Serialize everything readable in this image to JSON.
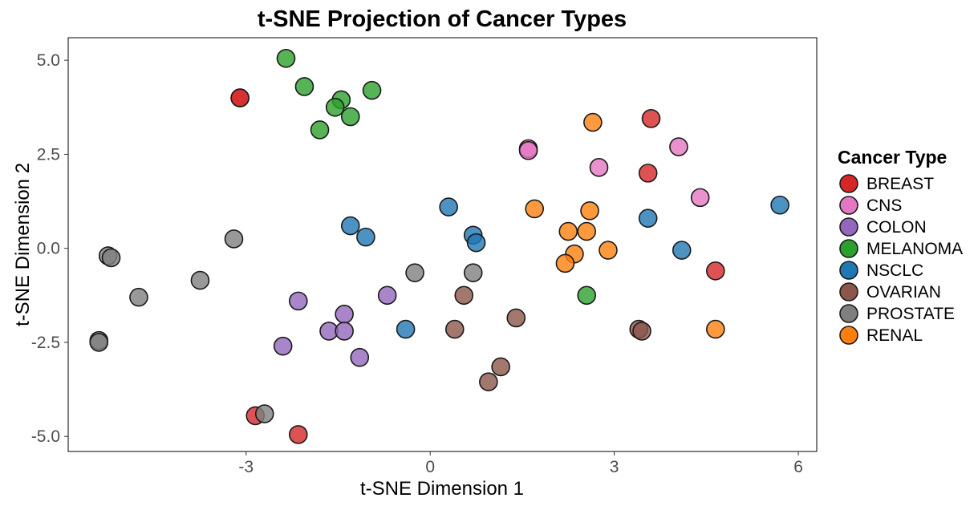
{
  "chart_data": {
    "type": "scatter",
    "title": "t-SNE Projection of Cancer Types",
    "xlabel": "t-SNE Dimension 1",
    "ylabel": "t-SNE Dimension 2",
    "xlim": [
      -5.9,
      6.3
    ],
    "ylim": [
      -5.4,
      5.6
    ],
    "xticks": [
      -3,
      0,
      3,
      6
    ],
    "xtick_labels": [
      "-3",
      "0",
      "3",
      "6"
    ],
    "yticks": [
      5.0,
      2.5,
      0.0,
      -2.5,
      -5.0
    ],
    "ytick_labels": [
      "5.0",
      "2.5",
      "0.0",
      "-2.5",
      "-5.0"
    ],
    "grid": false,
    "legend": {
      "title": "Cancer Type",
      "position": "right"
    },
    "series": [
      {
        "name": "BREAST",
        "color": "#d62728",
        "points": [
          [
            -3.1,
            4.0
          ],
          [
            -3.1,
            4.0
          ],
          [
            3.6,
            3.45
          ],
          [
            3.55,
            2.0
          ],
          [
            4.65,
            -0.6
          ],
          [
            -2.85,
            -4.45
          ],
          [
            -2.15,
            -4.95
          ]
        ]
      },
      {
        "name": "CNS",
        "color": "#e377c2",
        "points": [
          [
            1.6,
            2.65
          ],
          [
            1.6,
            2.6
          ],
          [
            2.75,
            2.15
          ],
          [
            4.05,
            2.7
          ],
          [
            4.4,
            1.35
          ]
        ]
      },
      {
        "name": "COLON",
        "color": "#9467bd",
        "points": [
          [
            -2.15,
            -1.4
          ],
          [
            -2.4,
            -2.6
          ],
          [
            -1.65,
            -2.2
          ],
          [
            -1.4,
            -1.75
          ],
          [
            -1.4,
            -2.2
          ],
          [
            -0.7,
            -1.25
          ],
          [
            -1.15,
            -2.9
          ]
        ]
      },
      {
        "name": "MELANOMA",
        "color": "#2ca02c",
        "points": [
          [
            -2.35,
            5.05
          ],
          [
            -2.05,
            4.3
          ],
          [
            -1.45,
            3.95
          ],
          [
            -1.55,
            3.75
          ],
          [
            -0.95,
            4.2
          ],
          [
            -1.3,
            3.5
          ],
          [
            -1.8,
            3.15
          ],
          [
            2.55,
            -1.25
          ]
        ]
      },
      {
        "name": "NSCLC",
        "color": "#1f77b4",
        "points": [
          [
            0.3,
            1.1
          ],
          [
            0.7,
            0.35
          ],
          [
            0.75,
            0.15
          ],
          [
            -1.3,
            0.6
          ],
          [
            -1.05,
            0.3
          ],
          [
            -0.4,
            -2.15
          ],
          [
            3.55,
            0.8
          ],
          [
            4.1,
            -0.05
          ],
          [
            5.7,
            1.15
          ]
        ]
      },
      {
        "name": "OVARIAN",
        "color": "#8c564b",
        "points": [
          [
            0.55,
            -1.25
          ],
          [
            0.4,
            -2.15
          ],
          [
            1.4,
            -1.85
          ],
          [
            1.15,
            -3.15
          ],
          [
            0.95,
            -3.55
          ],
          [
            3.4,
            -2.15
          ],
          [
            3.45,
            -2.2
          ]
        ]
      },
      {
        "name": "PROSTATE",
        "color": "#7f7f7f",
        "points": [
          [
            -3.2,
            0.25
          ],
          [
            -5.25,
            -0.2
          ],
          [
            -5.2,
            -0.25
          ],
          [
            -4.75,
            -1.3
          ],
          [
            -3.75,
            -0.85
          ],
          [
            -0.25,
            -0.65
          ],
          [
            0.7,
            -0.65
          ],
          [
            -5.4,
            -2.45
          ],
          [
            -5.4,
            -2.5
          ],
          [
            -2.7,
            -4.4
          ]
        ]
      },
      {
        "name": "RENAL",
        "color": "#ff7f0e",
        "points": [
          [
            2.65,
            3.35
          ],
          [
            1.7,
            1.05
          ],
          [
            2.6,
            1.0
          ],
          [
            2.25,
            0.45
          ],
          [
            2.55,
            0.45
          ],
          [
            2.35,
            -0.15
          ],
          [
            2.2,
            -0.4
          ],
          [
            2.9,
            -0.05
          ],
          [
            4.65,
            -2.15
          ]
        ]
      }
    ]
  }
}
